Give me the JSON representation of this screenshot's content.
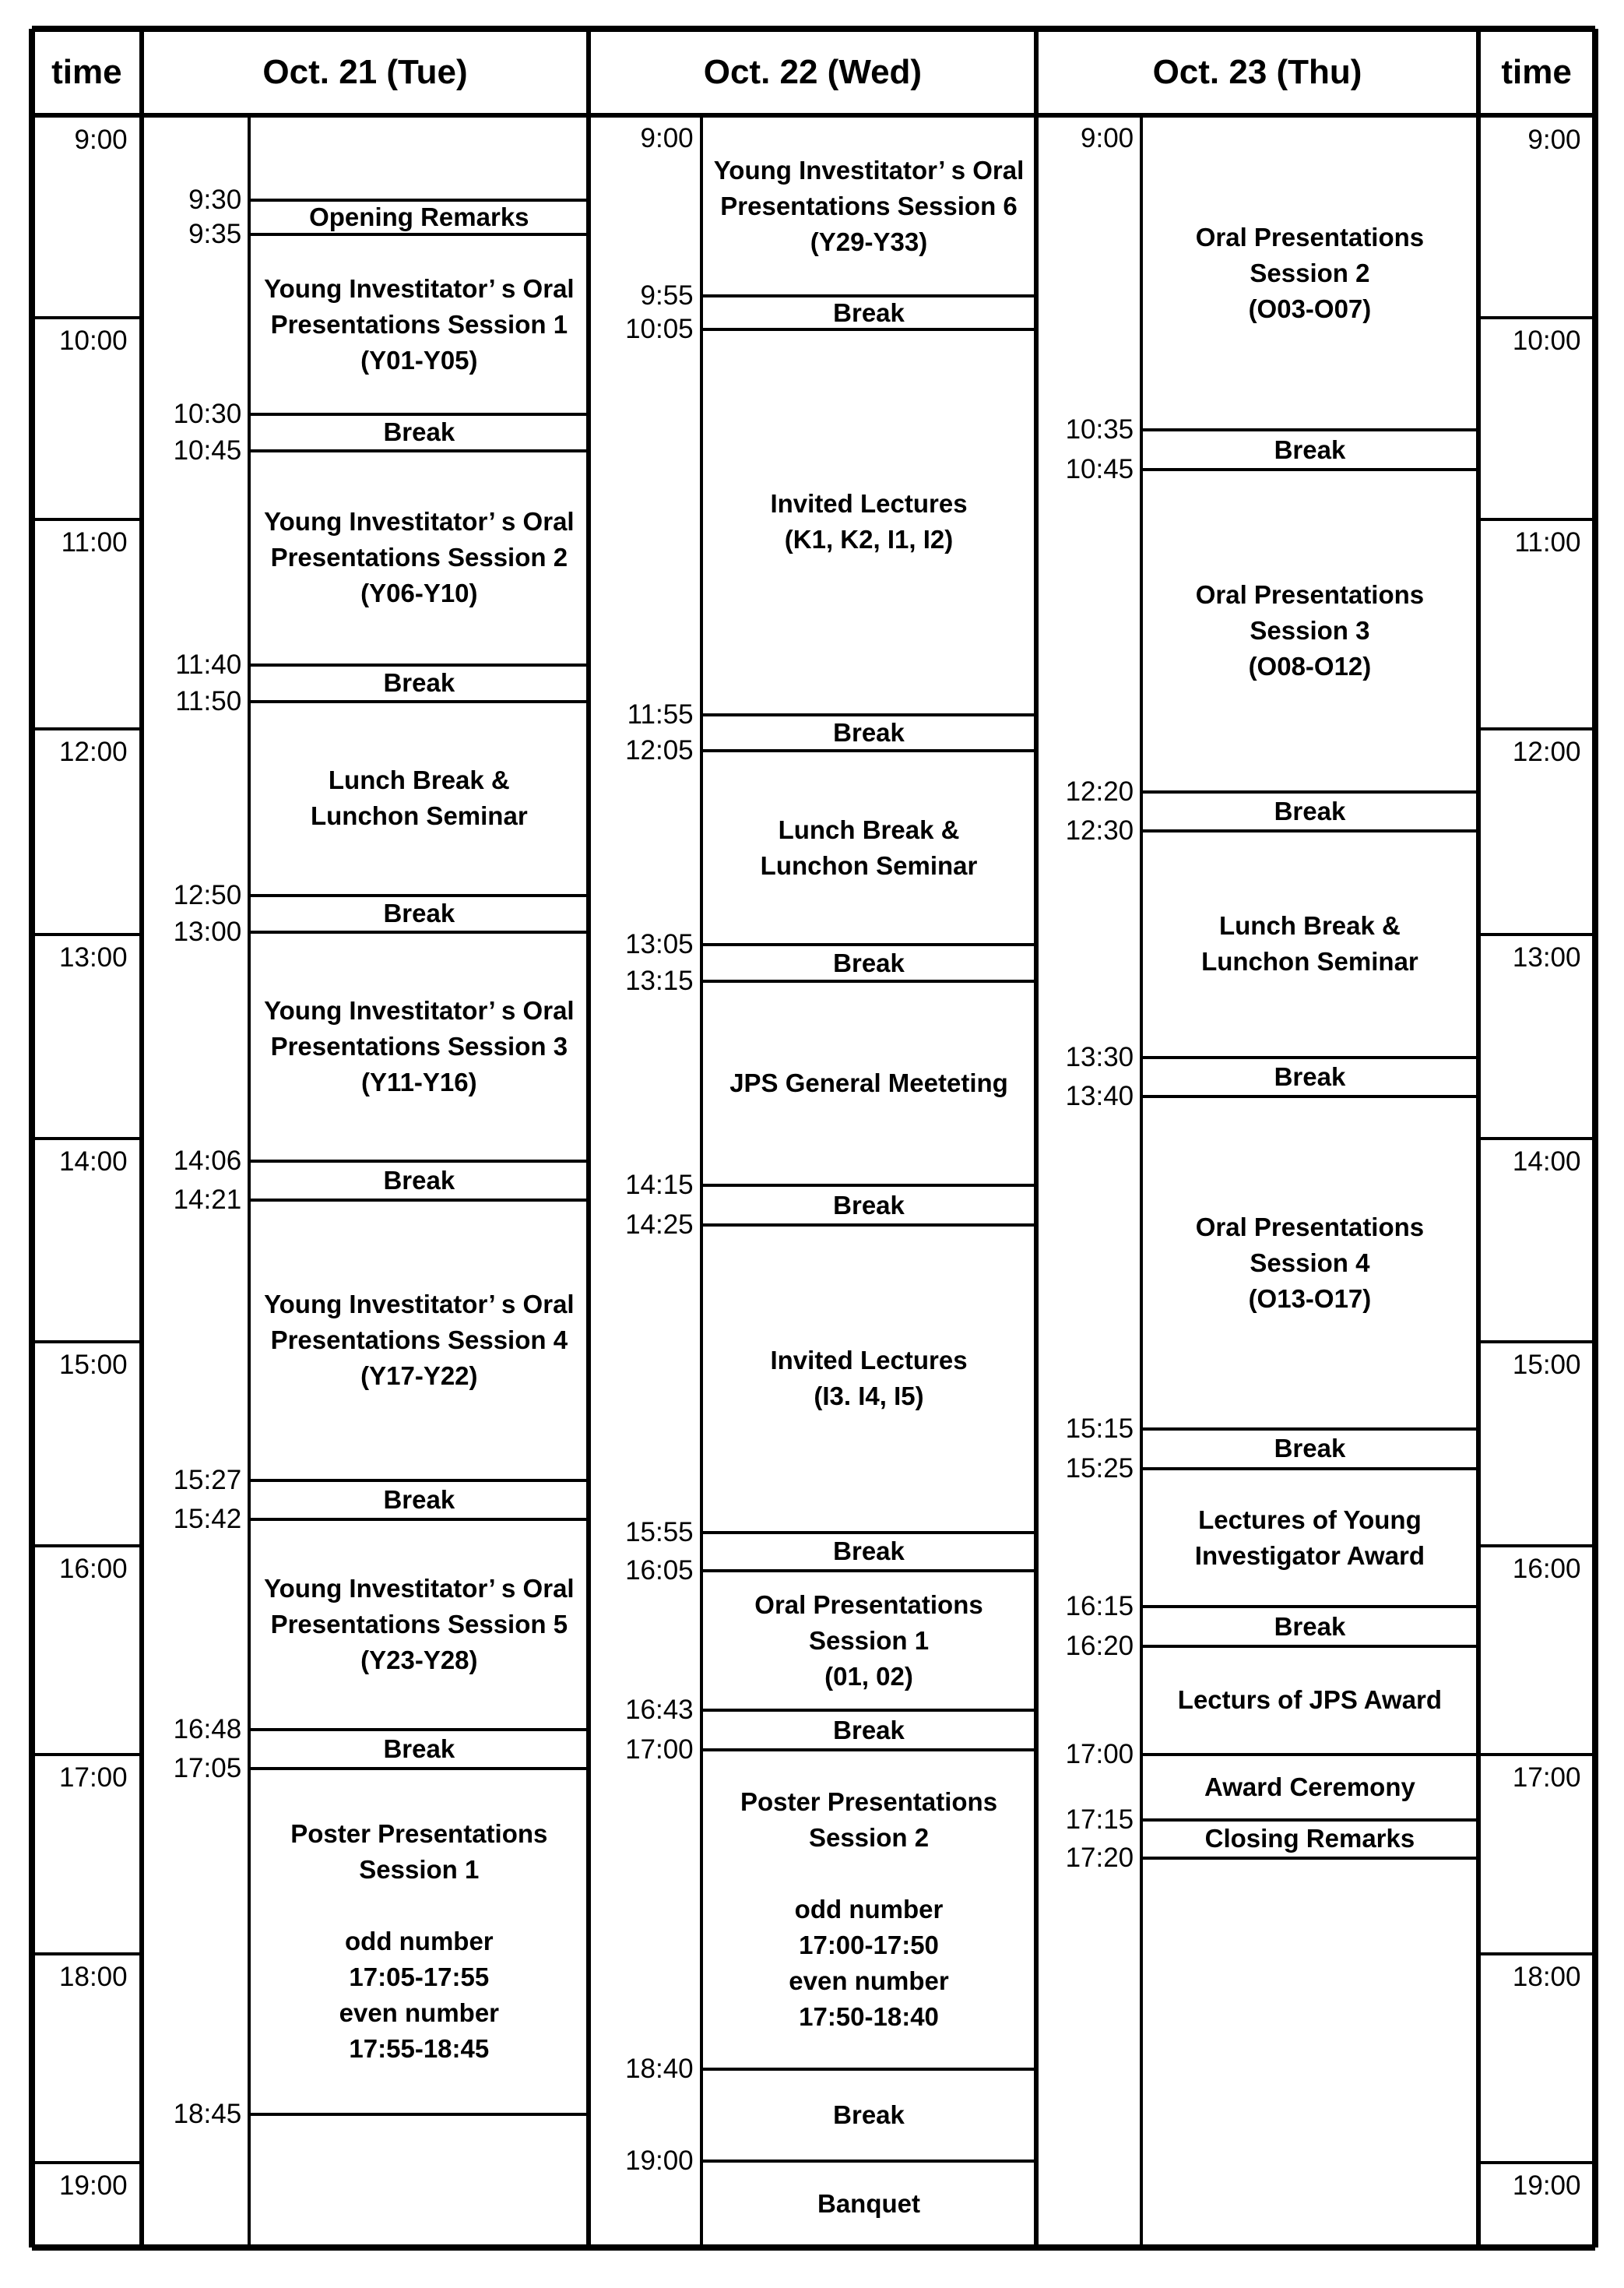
{
  "time_header": "time",
  "hours": [
    "9:00",
    "10:00",
    "11:00",
    "12:00",
    "13:00",
    "14:00",
    "15:00",
    "16:00",
    "17:00",
    "18:00",
    "19:00"
  ],
  "days": [
    {
      "header": "Oct. 21 (Tue)",
      "times": [
        "9:30",
        "9:35",
        "10:30",
        "10:45",
        "11:40",
        "11:50",
        "12:50",
        "13:00",
        "14:06",
        "14:21",
        "15:27",
        "15:42",
        "16:48",
        "17:05",
        "18:45"
      ],
      "events": [
        {
          "lines": []
        },
        {
          "lines": [
            "Opening Remarks"
          ]
        },
        {
          "lines": [
            "Young Investitator’ s Oral",
            "Presentations Session 1",
            "(Y01-Y05)"
          ]
        },
        {
          "lines": [
            "Break"
          ]
        },
        {
          "lines": [
            "Young Investitator’ s Oral",
            "Presentations Session 2",
            "(Y06-Y10)"
          ]
        },
        {
          "lines": [
            "Break"
          ]
        },
        {
          "lines": [
            "Lunch Break &",
            "Lunchon Seminar"
          ]
        },
        {
          "lines": [
            "Break"
          ]
        },
        {
          "lines": [
            "Young Investitator’ s Oral",
            "Presentations Session 3",
            "(Y11-Y16)"
          ]
        },
        {
          "lines": [
            "Break"
          ]
        },
        {
          "lines": [
            "Young Investitator’ s Oral",
            "Presentations Session 4",
            "(Y17-Y22)"
          ]
        },
        {
          "lines": [
            "Break"
          ]
        },
        {
          "lines": [
            "Young Investitator’ s Oral",
            "Presentations Session 5",
            "(Y23-Y28)"
          ]
        },
        {
          "lines": [
            "Break"
          ]
        },
        {
          "lines": [
            "Poster Presentations",
            "Session 1",
            "",
            "odd number",
            "17:05-17:55",
            "even number",
            "17:55-18:45"
          ]
        },
        {
          "lines": []
        }
      ]
    },
    {
      "header": "Oct. 22 (Wed)",
      "times": [
        "9:00",
        "9:55",
        "10:05",
        "11:55",
        "12:05",
        "13:05",
        "13:15",
        "14:15",
        "14:25",
        "15:55",
        "16:05",
        "16:43",
        "17:00",
        "18:40",
        "19:00"
      ],
      "events": [
        {
          "lines": [
            "Young Investitator’ s Oral",
            "Presentations Session 6",
            "(Y29-Y33)"
          ]
        },
        {
          "lines": [
            "Break"
          ]
        },
        {
          "lines": [
            "Invited Lectures",
            "(K1, K2, I1, I2)"
          ]
        },
        {
          "lines": [
            "Break"
          ]
        },
        {
          "lines": [
            "Lunch Break &",
            "Lunchon Seminar"
          ]
        },
        {
          "lines": [
            "Break"
          ]
        },
        {
          "lines": [
            "JPS General Meeteting"
          ]
        },
        {
          "lines": [
            "Break"
          ]
        },
        {
          "lines": [
            "Invited Lectures",
            "(I3. I4, I5)"
          ]
        },
        {
          "lines": [
            "Break"
          ]
        },
        {
          "lines": [
            "Oral Presentations",
            "Session 1",
            "(01, 02)"
          ]
        },
        {
          "lines": [
            "Break"
          ]
        },
        {
          "lines": [
            "Poster Presentations",
            "Session 2",
            "",
            "odd number",
            "17:00-17:50",
            "even number",
            "17:50-18:40"
          ]
        },
        {
          "lines": [
            "Break"
          ]
        },
        {
          "lines": [
            "Banquet"
          ]
        }
      ]
    },
    {
      "header": "Oct. 23 (Thu)",
      "times": [
        "9:00",
        "10:35",
        "10:45",
        "12:20",
        "12:30",
        "13:30",
        "13:40",
        "15:15",
        "15:25",
        "16:15",
        "16:20",
        "17:00",
        "17:15",
        "17:20"
      ],
      "events": [
        {
          "lines": [
            "Oral Presentations",
            "Session 2",
            "(O03-O07)"
          ]
        },
        {
          "lines": [
            "Break"
          ]
        },
        {
          "lines": [
            "Oral Presentations",
            "Session 3",
            "(O08-O12)"
          ]
        },
        {
          "lines": [
            "Break"
          ]
        },
        {
          "lines": [
            "Lunch Break &",
            "Lunchon Seminar"
          ]
        },
        {
          "lines": [
            "Break"
          ]
        },
        {
          "lines": [
            "Oral Presentations",
            "Session 4",
            "(O13-O17)"
          ]
        },
        {
          "lines": [
            "Break"
          ]
        },
        {
          "lines": [
            "Lectures of Young",
            "Investigator  Award"
          ]
        },
        {
          "lines": [
            "Break"
          ]
        },
        {
          "lines": [
            "Lecturs of JPS  Award"
          ]
        },
        {
          "lines": [
            "Award Ceremony"
          ]
        },
        {
          "lines": [
            "Closing Remarks"
          ]
        },
        {
          "lines": []
        }
      ]
    }
  ]
}
